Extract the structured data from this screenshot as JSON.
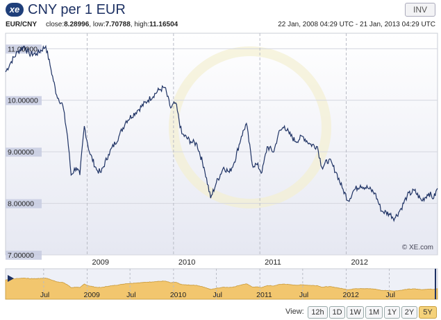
{
  "header": {
    "logo_text": "xe",
    "title": "CNY per 1 EUR",
    "invert_label": "INV"
  },
  "info": {
    "pair": "EUR/CNY",
    "close_label": "close:",
    "close_value": "8.28996",
    "low_label": "low:",
    "low_value": "7.70788",
    "high_label": "high:",
    "high_value": "11.16504",
    "date_range": "22 Jan, 2008 04:29 UTC - 21 Jan, 2013 04:29 UTC"
  },
  "watermark": "© XE.com",
  "view": {
    "label": "View:",
    "buttons": [
      "12h",
      "1D",
      "1W",
      "1M",
      "1Y",
      "2Y",
      "5Y"
    ],
    "active": "5Y"
  },
  "colors": {
    "line": "#1e3264",
    "plot_bg_top": "#ffffff",
    "plot_bg_bottom": "#e6e8f2",
    "label_bg": "#c7cbe0",
    "nav_fill": "#f2c66e",
    "nav_bg": "#eef0f7",
    "grid": "#d4d6de"
  },
  "chart_data": {
    "type": "line",
    "title": "CNY per 1 EUR",
    "x_range": [
      "2008-01-22",
      "2013-01-21"
    ],
    "ylim": [
      7.0,
      11.3
    ],
    "y_ticks": [
      11.0,
      10.0,
      9.0,
      8.0,
      7.0
    ],
    "y_tick_labels": [
      "11.00000",
      "10.00000",
      "9.00000",
      "8.00000",
      "7.00000"
    ],
    "x_ticks": [
      {
        "date": "2009-01-01",
        "label": "2009"
      },
      {
        "date": "2010-01-01",
        "label": "2010"
      },
      {
        "date": "2011-01-01",
        "label": "2011"
      },
      {
        "date": "2012-01-01",
        "label": "2012"
      }
    ],
    "grid": true,
    "series": [
      {
        "values": [
          [
            "2008-01-22",
            10.55
          ],
          [
            "2008-02-15",
            10.75
          ],
          [
            "2008-03-15",
            10.95
          ],
          [
            "2008-04-10",
            11.05
          ],
          [
            "2008-05-01",
            10.9
          ],
          [
            "2008-06-01",
            10.9
          ],
          [
            "2008-07-10",
            11.05
          ],
          [
            "2008-08-01",
            10.6
          ],
          [
            "2008-08-25",
            10.1
          ],
          [
            "2008-09-20",
            9.9
          ],
          [
            "2008-10-10",
            9.3
          ],
          [
            "2008-10-25",
            8.55
          ],
          [
            "2008-11-15",
            8.7
          ],
          [
            "2008-12-01",
            8.55
          ],
          [
            "2008-12-20",
            9.5
          ],
          [
            "2009-01-10",
            9.0
          ],
          [
            "2009-02-10",
            8.65
          ],
          [
            "2009-03-01",
            8.6
          ],
          [
            "2009-04-01",
            8.95
          ],
          [
            "2009-05-15",
            9.3
          ],
          [
            "2009-06-15",
            9.6
          ],
          [
            "2009-08-01",
            9.8
          ],
          [
            "2009-09-15",
            10.0
          ],
          [
            "2009-11-01",
            10.2
          ],
          [
            "2009-11-25",
            10.25
          ],
          [
            "2009-12-20",
            9.85
          ],
          [
            "2010-01-10",
            9.95
          ],
          [
            "2010-02-05",
            9.35
          ],
          [
            "2010-03-15",
            9.2
          ],
          [
            "2010-04-10",
            9.15
          ],
          [
            "2010-05-10",
            8.7
          ],
          [
            "2010-06-07",
            8.1
          ],
          [
            "2010-07-01",
            8.4
          ],
          [
            "2010-08-01",
            8.7
          ],
          [
            "2010-08-25",
            8.6
          ],
          [
            "2010-09-15",
            8.8
          ],
          [
            "2010-10-15",
            9.3
          ],
          [
            "2010-11-05",
            9.55
          ],
          [
            "2010-11-30",
            8.75
          ],
          [
            "2010-12-20",
            8.75
          ],
          [
            "2011-01-10",
            8.6
          ],
          [
            "2011-02-01",
            9.1
          ],
          [
            "2011-03-01",
            9.0
          ],
          [
            "2011-03-20",
            9.35
          ],
          [
            "2011-04-15",
            9.5
          ],
          [
            "2011-05-05",
            9.35
          ],
          [
            "2011-06-01",
            9.2
          ],
          [
            "2011-07-01",
            9.3
          ],
          [
            "2011-08-01",
            9.15
          ],
          [
            "2011-09-01",
            9.1
          ],
          [
            "2011-09-20",
            8.7
          ],
          [
            "2011-10-20",
            8.85
          ],
          [
            "2011-11-20",
            8.6
          ],
          [
            "2011-12-15",
            8.3
          ],
          [
            "2012-01-10",
            8.05
          ],
          [
            "2012-02-01",
            8.25
          ],
          [
            "2012-03-01",
            8.35
          ],
          [
            "2012-04-01",
            8.3
          ],
          [
            "2012-05-01",
            8.2
          ],
          [
            "2012-05-30",
            7.85
          ],
          [
            "2012-07-01",
            7.8
          ],
          [
            "2012-07-24",
            7.71
          ],
          [
            "2012-08-20",
            7.9
          ],
          [
            "2012-09-15",
            8.15
          ],
          [
            "2012-10-15",
            8.25
          ],
          [
            "2012-11-15",
            8.05
          ],
          [
            "2012-12-15",
            8.2
          ],
          [
            "2013-01-05",
            8.1
          ],
          [
            "2013-01-21",
            8.29
          ]
        ]
      }
    ],
    "navigator": {
      "labels": [
        {
          "date": "2008-07-01",
          "label": "Jul"
        },
        {
          "date": "2009-01-01",
          "label": "2009"
        },
        {
          "date": "2009-07-01",
          "label": "Jul"
        },
        {
          "date": "2010-01-01",
          "label": "2010"
        },
        {
          "date": "2010-07-01",
          "label": "Jul"
        },
        {
          "date": "2011-01-01",
          "label": "2011"
        },
        {
          "date": "2011-07-01",
          "label": "Jul"
        },
        {
          "date": "2012-01-01",
          "label": "2012"
        },
        {
          "date": "2012-07-01",
          "label": "Jul"
        }
      ]
    }
  }
}
